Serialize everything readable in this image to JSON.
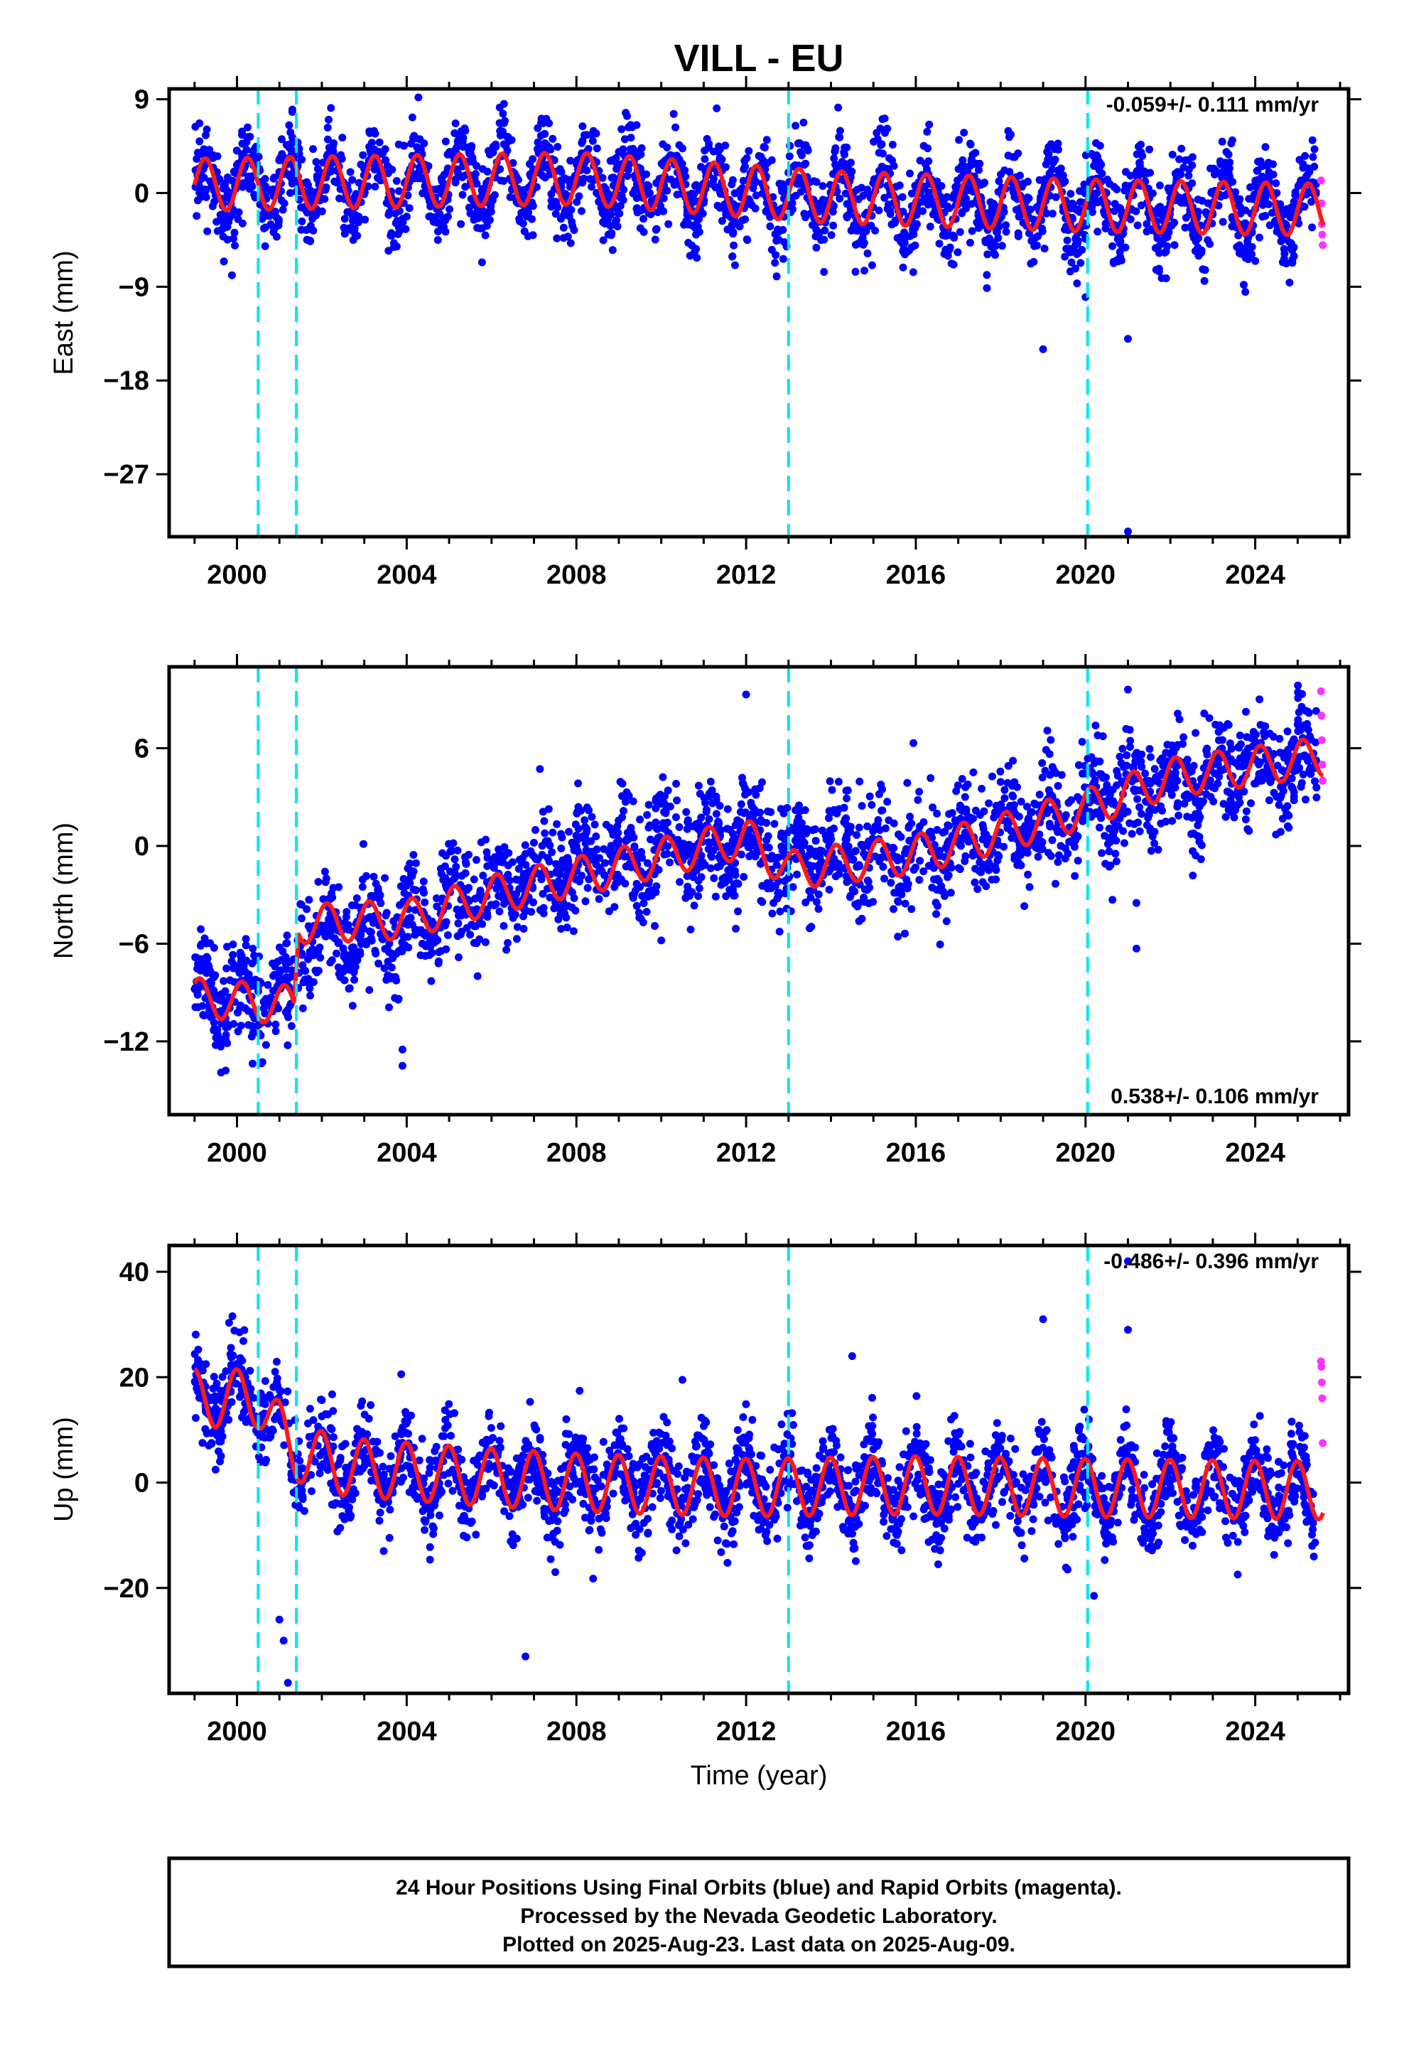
{
  "title": "VILL - EU",
  "colors": {
    "final_orbits": "#0000ff",
    "rapid_orbits": "#ff33ff",
    "model_fit": "#ff1a1a",
    "equipment_change": "#00e5ee"
  },
  "footer": {
    "line1": "24 Hour Positions Using Final Orbits (blue) and Rapid Orbits (magenta).",
    "line2": "Processed by the Nevada Geodetic Laboratory.",
    "line3": "Plotted on 2025-Aug-23. Last data on 2025-Aug-09."
  },
  "chart_data": [
    {
      "type": "scatter",
      "ylabel": "East (mm)",
      "rate_label": "-0.059+/- 0.111 mm/yr",
      "rate_position": "top-right",
      "xlim": [
        1998.4,
        2026.2
      ],
      "ylim": [
        -33,
        10
      ],
      "xticks": [
        2000,
        2004,
        2008,
        2012,
        2016,
        2020,
        2024
      ],
      "yticks": [
        9,
        0,
        -9,
        -18,
        -27
      ],
      "grid": false,
      "equipment_changes": [
        2000.5,
        2001.4,
        2013.0,
        2020.05
      ],
      "series": [
        {
          "name": "Final Orbits (blue)",
          "trend": [
            [
              1999.0,
              0.6
            ],
            [
              2008.0,
              1.2
            ],
            [
              2014.0,
              -0.5
            ],
            [
              2020.0,
              -1.2
            ],
            [
              2025.6,
              -1.5
            ]
          ],
          "seasonal_amplitude": 2.8,
          "scatter_std": 2.0,
          "x_range": [
            1999.0,
            2025.45
          ]
        },
        {
          "name": "Rapid Orbits (magenta)",
          "points": [
            [
              2025.55,
              1.2
            ],
            [
              2025.56,
              -1.0
            ],
            [
              2025.57,
              -3.0
            ],
            [
              2025.58,
              -4.0
            ],
            [
              2025.59,
              -5.0
            ]
          ]
        },
        {
          "name": "Model",
          "trend": [
            [
              1999.0,
              0.8
            ],
            [
              2008.0,
              1.4
            ],
            [
              2014.0,
              -0.4
            ],
            [
              2020.0,
              -1.2
            ],
            [
              2025.6,
              -1.6
            ]
          ],
          "seasonal_amplitude": 2.5,
          "x_range": [
            1999.0,
            2025.6
          ]
        }
      ],
      "outliers": [
        [
          2019.0,
          -15.0
        ],
        [
          2021.0,
          -14.0
        ],
        [
          2021.0,
          -32.5
        ],
        [
          2020.0,
          -10.0
        ]
      ]
    },
    {
      "type": "scatter",
      "ylabel": "North (mm)",
      "rate_label": "0.538+/- 0.106 mm/yr",
      "rate_position": "bottom-right",
      "xlim": [
        1998.4,
        2026.2
      ],
      "ylim": [
        -16.5,
        11
      ],
      "xticks": [
        2000,
        2004,
        2008,
        2012,
        2016,
        2020,
        2024
      ],
      "yticks": [
        6,
        0,
        -6,
        -12
      ],
      "grid": false,
      "equipment_changes": [
        2000.5,
        2001.4,
        2013.0,
        2020.05
      ],
      "series": [
        {
          "name": "Final Orbits (blue)",
          "trend": [
            [
              1999.0,
              -9.0
            ],
            [
              2001.35,
              -9.5
            ],
            [
              2001.45,
              -5.8
            ],
            [
              2004.0,
              -4.8
            ],
            [
              2006.0,
              -2.5
            ],
            [
              2009.0,
              -0.8
            ],
            [
              2012.0,
              0.3
            ],
            [
              2013.0,
              -0.8
            ],
            [
              2016.0,
              -0.3
            ],
            [
              2018.0,
              0.8
            ],
            [
              2020.0,
              2.3
            ],
            [
              2022.0,
              4.0
            ],
            [
              2025.6,
              5.5
            ]
          ],
          "seasonal_amplitude": 1.3,
          "scatter_std": 1.6,
          "x_range": [
            1999.0,
            2025.45
          ]
        },
        {
          "name": "Rapid Orbits (magenta)",
          "points": [
            [
              2025.55,
              9.5
            ],
            [
              2025.56,
              8.0
            ],
            [
              2025.57,
              6.5
            ],
            [
              2025.58,
              5.0
            ],
            [
              2025.59,
              4.0
            ]
          ]
        },
        {
          "name": "Model",
          "trend": [
            [
              1999.0,
              -9.3
            ],
            [
              2001.35,
              -9.8
            ],
            [
              2001.45,
              -4.8
            ],
            [
              2004.0,
              -4.5
            ],
            [
              2006.0,
              -3.0
            ],
            [
              2009.0,
              -1.3
            ],
            [
              2012.0,
              0.5
            ],
            [
              2013.0,
              -1.5
            ],
            [
              2016.0,
              -0.5
            ],
            [
              2018.0,
              0.8
            ],
            [
              2020.0,
              2.3
            ],
            [
              2022.0,
              4.2
            ],
            [
              2025.6,
              5.5
            ]
          ],
          "seasonal_amplitude": 1.2,
          "x_range": [
            1999.0,
            2025.6
          ]
        }
      ],
      "outliers": [
        [
          2012.0,
          9.3
        ],
        [
          2021.0,
          9.6
        ],
        [
          2021.2,
          -3.5
        ],
        [
          2021.2,
          -6.3
        ],
        [
          2003.9,
          -13.5
        ],
        [
          2003.9,
          -12.5
        ],
        [
          2010.0,
          -5.8
        ]
      ]
    },
    {
      "type": "scatter",
      "ylabel": "Up (mm)",
      "rate_label": "-0.486+/- 0.396 mm/yr",
      "rate_position": "top-right",
      "xlim": [
        1998.4,
        2026.2
      ],
      "ylim": [
        -40,
        45
      ],
      "xticks": [
        2000,
        2004,
        2008,
        2012,
        2016,
        2020,
        2024
      ],
      "yticks": [
        40,
        20,
        0,
        -20
      ],
      "grid": false,
      "equipment_changes": [
        2000.5,
        2001.4,
        2013.0,
        2020.05
      ],
      "series": [
        {
          "name": "Final Orbits (blue)",
          "trend": [
            [
              1999.0,
              16.0
            ],
            [
              2000.5,
              16.0
            ],
            [
              2001.3,
              6.0
            ],
            [
              2002.5,
              3.0
            ],
            [
              2005.0,
              1.5
            ],
            [
              2008.0,
              0.0
            ],
            [
              2012.0,
              -1.0
            ],
            [
              2016.0,
              -0.5
            ],
            [
              2020.0,
              -1.0
            ],
            [
              2025.6,
              -1.5
            ]
          ],
          "seasonal_amplitude": 5.5,
          "scatter_std": 4.0,
          "x_range": [
            1999.0,
            2025.45
          ]
        },
        {
          "name": "Rapid Orbits (magenta)",
          "points": [
            [
              2025.55,
              23.0
            ],
            [
              2025.56,
              22.0
            ],
            [
              2025.57,
              19.0
            ],
            [
              2025.58,
              16.0
            ],
            [
              2025.59,
              7.5
            ]
          ]
        },
        {
          "name": "Model",
          "trend": [
            [
              1999.0,
              16.0
            ],
            [
              2000.5,
              16.0
            ],
            [
              2001.3,
              6.0
            ],
            [
              2002.5,
              3.0
            ],
            [
              2005.0,
              1.5
            ],
            [
              2008.0,
              0.0
            ],
            [
              2012.0,
              -1.0
            ],
            [
              2016.0,
              -0.5
            ],
            [
              2020.0,
              -1.0
            ],
            [
              2025.6,
              -1.5
            ]
          ],
          "seasonal_amplitude": 5.5,
          "x_range": [
            1999.0,
            2025.6
          ]
        }
      ],
      "outliers": [
        [
          2019.0,
          31.0
        ],
        [
          2021.0,
          29.0
        ],
        [
          2021.0,
          42.0
        ],
        [
          2014.5,
          24.0
        ],
        [
          2010.5,
          19.5
        ],
        [
          2006.8,
          -33.0
        ],
        [
          2001.2,
          -38.0
        ],
        [
          2001.1,
          -30.0
        ],
        [
          2001.0,
          -26.0
        ],
        [
          2020.2,
          -21.5
        ]
      ]
    }
  ],
  "xlabel": "Time (year)"
}
